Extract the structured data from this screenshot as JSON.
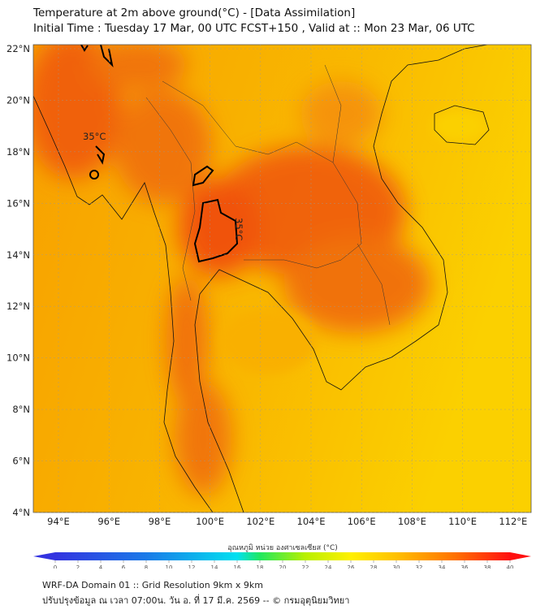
{
  "header": {
    "title": "Temperature at 2m above ground(°C) - [Data Assimilation]",
    "subtitle": "Initial Time : Tuesday 17 Mar, 00 UTC FCST+150 , Valid at :: Mon 23 Mar, 06 UTC"
  },
  "map": {
    "lat_labels": [
      "22°N",
      "20°N",
      "18°N",
      "16°N",
      "14°N",
      "12°N",
      "10°N",
      "8°N",
      "6°N",
      "4°N"
    ],
    "lat_values": [
      22,
      20,
      18,
      16,
      14,
      12,
      10,
      8,
      6,
      4
    ],
    "lon_labels": [
      "94°E",
      "96°E",
      "98°E",
      "100°E",
      "102°E",
      "104°E",
      "106°E",
      "108°E",
      "110°E",
      "112°E"
    ],
    "lon_values": [
      94,
      96,
      98,
      100,
      102,
      104,
      106,
      108,
      110,
      112
    ],
    "contour_label_1": "35°C",
    "contour_label_2": "35°C"
  },
  "colorbar": {
    "title": "อุณหภูมิ หน่วย องศาเซลเซียส (°C)",
    "ticks": [
      "0",
      "2",
      "4",
      "6",
      "8",
      "10",
      "12",
      "14",
      "16",
      "18",
      "20",
      "22",
      "24",
      "26",
      "28",
      "30",
      "32",
      "34",
      "36",
      "38",
      "40"
    ],
    "min": 0,
    "max": 40
  },
  "footer": {
    "line1": "WRF-DA Domain 01 :: Grid Resolution 9km x 9km",
    "line2": "ปรับปรุงข้อมูล ณ เวลา 07:00น. วัน อ. ที่ 17 มี.ค. 2569 -- © กรมอุตุนิยมวิทยา"
  }
}
